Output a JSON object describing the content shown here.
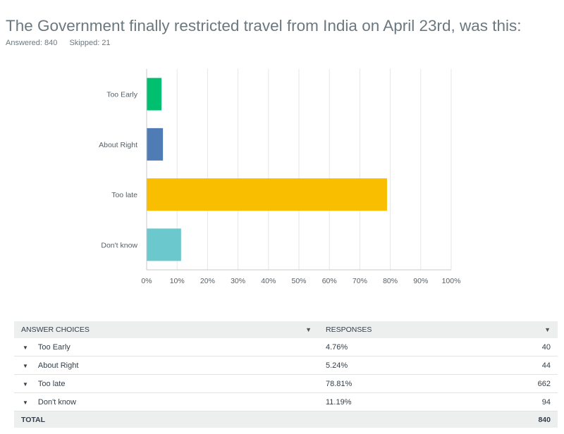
{
  "question": {
    "title": "The Government finally restricted travel from India on April 23rd, was this:",
    "answered_label": "Answered: 840",
    "skipped_label": "Skipped: 21"
  },
  "chart_data": {
    "type": "bar",
    "orientation": "horizontal",
    "categories": [
      "Too Early",
      "About Right",
      "Too late",
      "Don't know"
    ],
    "values": [
      4.76,
      5.24,
      78.81,
      11.19
    ],
    "colors": [
      "#00bf6f",
      "#507cb6",
      "#f9be00",
      "#6bc8cd"
    ],
    "xlim": [
      0,
      100
    ],
    "xticks": [
      "0%",
      "10%",
      "20%",
      "30%",
      "40%",
      "50%",
      "60%",
      "70%",
      "80%",
      "90%",
      "100%"
    ],
    "grid": true
  },
  "table": {
    "headers": {
      "choices": "ANSWER CHOICES",
      "responses": "RESPONSES"
    },
    "rows": [
      {
        "choice": "Too Early",
        "percent": "4.76%",
        "count": "40"
      },
      {
        "choice": "About Right",
        "percent": "5.24%",
        "count": "44"
      },
      {
        "choice": "Too late",
        "percent": "78.81%",
        "count": "662"
      },
      {
        "choice": "Don't know",
        "percent": "11.19%",
        "count": "94"
      }
    ],
    "total_label": "TOTAL",
    "total_count": "840"
  }
}
